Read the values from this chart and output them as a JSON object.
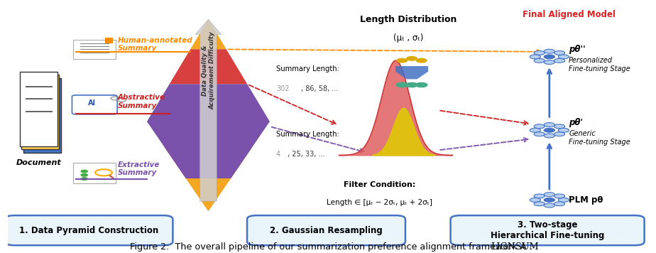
{
  "fig_width": 9.24,
  "fig_height": 3.56,
  "dpi": 100,
  "background_color": "#ffffff",
  "box1_text": "1. Data Pyramid Construction",
  "box2_text": "2. Gaussian Resampling",
  "box3_text": "3. Two-stage\nHierarchical Fine-tuning",
  "label_human": "Human-annotated\nSummary",
  "label_abstractive": "Abstractive\nSummary",
  "label_extractive": "Extractive\nSummary",
  "color_human": "#FF8C00",
  "color_abstractive": "#CC2222",
  "color_extractive": "#7B52AB",
  "pyramid_gray_color": "#C8C8C8",
  "label_doc": "Document",
  "summary_length1_label": "Summary Length:",
  "summary_length1_vals": "302, 86, 58, ...",
  "summary_length2_label": "Summary Length:",
  "summary_length2_vals": "4, 25, 33, ...",
  "length_dist_title": "Length Distribution",
  "length_dist_params": "(μₜ , σₜ)",
  "filter_title": "Filter Condition:",
  "filter_formula": "Length ∈ [μₜ − 2σₜ, μₜ + 2σₜ]",
  "final_model_label": "Final Aligned Model",
  "p_theta2_label": "pθ''",
  "p_theta1_label": "pθ'",
  "p_theta0_label": "PLM pθ",
  "personalized_label": "Personalized\nFine-tuning Stage",
  "generic_label": "Generic\nFine-tuning Stage",
  "data_quality_label": "Data Quality &\nAcquirement Difficulty"
}
